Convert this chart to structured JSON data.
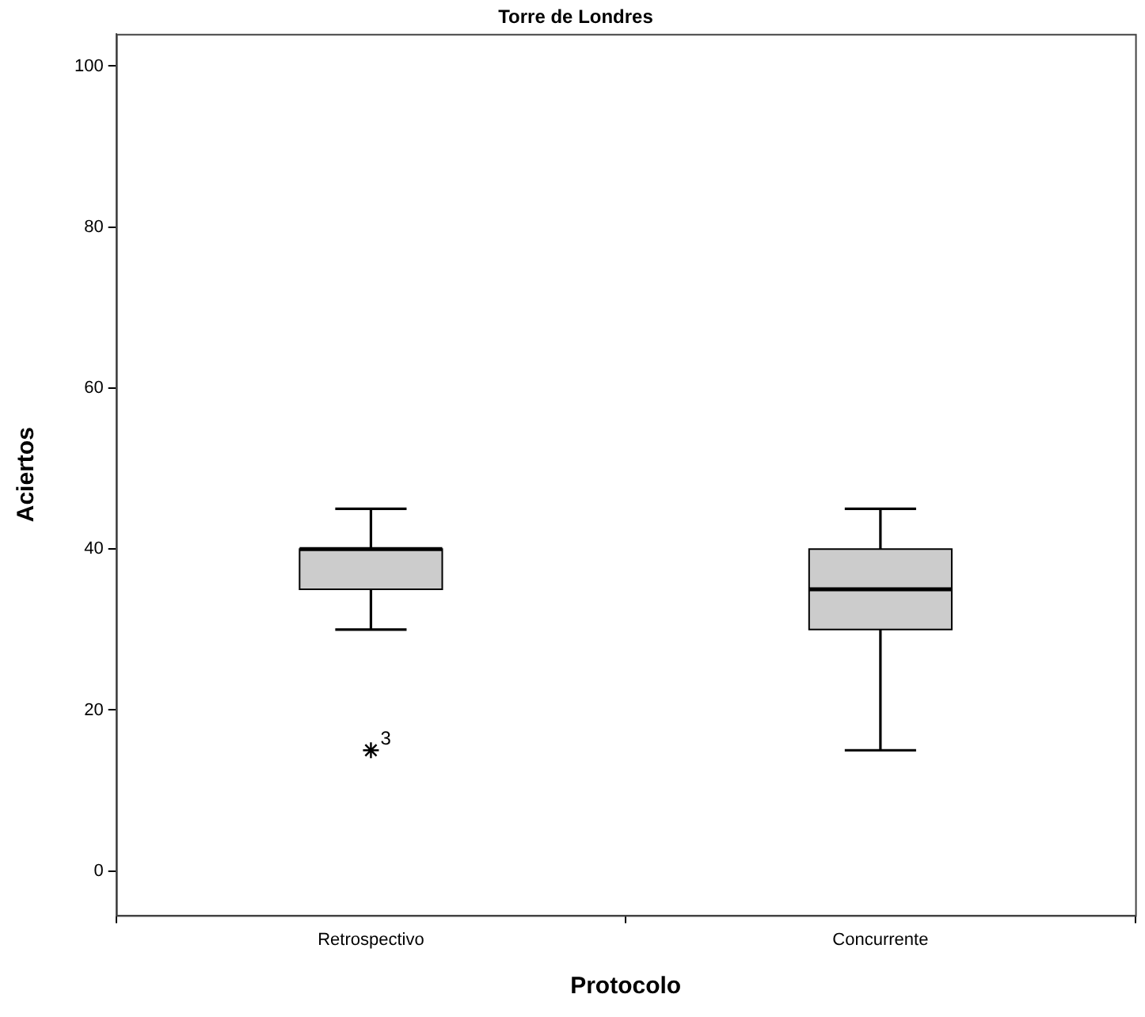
{
  "chart_data": {
    "type": "box",
    "title": "Torre de Londres",
    "xlabel": "Protocolo",
    "ylabel": "Aciertos",
    "categories": [
      "Retrospectivo",
      "Concurrente"
    ],
    "boxes": [
      {
        "low": 30,
        "q1": 35,
        "median": 40,
        "q3": 40,
        "high": 45,
        "outliers": [
          15
        ]
      },
      {
        "low": 15,
        "q1": 30,
        "median": 35,
        "q3": 40,
        "high": 45
      }
    ],
    "color": "#cccccc",
    "marker": "star",
    "ylim": [
      -5.5,
      104
    ],
    "yticks": [
      0,
      20,
      40,
      60,
      80,
      100
    ],
    "grid": false,
    "legend": false,
    "annotations": [
      "3"
    ]
  }
}
